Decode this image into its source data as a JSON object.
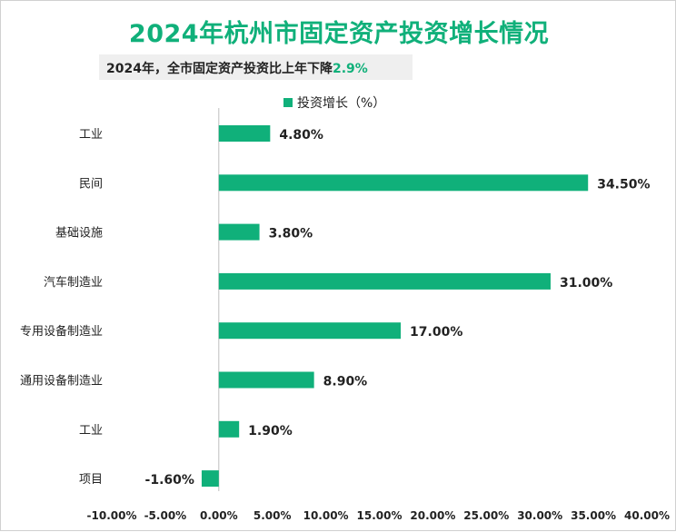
{
  "header": {
    "title": "2024年杭州市固定资产投资增长情况",
    "subtitle_text": "2024年，全市固定资产投资比上年下降",
    "subtitle_value": "2.9%"
  },
  "colors": {
    "accent": "#10b07a",
    "bar": "#10b07a"
  },
  "chart_data": {
    "type": "bar",
    "orientation": "horizontal",
    "categories": [
      "工业",
      "民间",
      "基础设施",
      "汽车制造业",
      "专用设备制造业",
      "通用设备制造业",
      "工业",
      "项目"
    ],
    "series": [
      {
        "name": "投资增长（%）",
        "values": [
          4.8,
          34.5,
          3.8,
          31.0,
          17.0,
          8.9,
          1.9,
          -1.6
        ]
      }
    ],
    "data_labels": [
      "4.80%",
      "34.50%",
      "3.80%",
      "31.00%",
      "17.00%",
      "8.90%",
      "1.90%",
      "-1.60%"
    ],
    "xlim": [
      -10,
      40
    ],
    "x_ticks": [
      -10,
      -5,
      0,
      5,
      10,
      15,
      20,
      25,
      30,
      35,
      40
    ],
    "x_tick_labels": [
      "-10.00%",
      "-5.00%",
      "0.00%",
      "5.00%",
      "10.00%",
      "15.00%",
      "20.00%",
      "25.00%",
      "30.00%",
      "35.00%",
      "40.00%"
    ],
    "legend_position": "top",
    "grid": false
  }
}
